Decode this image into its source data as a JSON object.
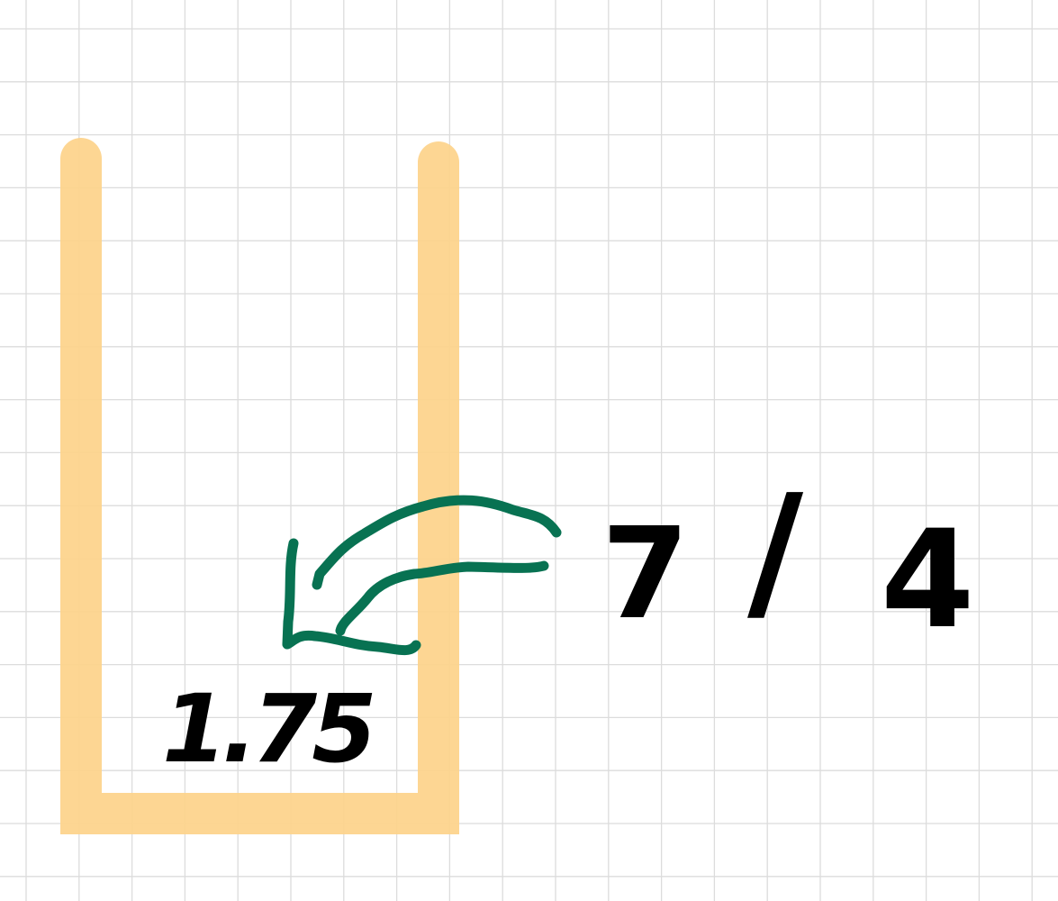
{
  "canvas": {
    "background_color": "#ffffff",
    "grid_color": "#dcdcdc"
  },
  "strokes": {
    "container_color": "#fdd38a",
    "arrow_color": "#087252",
    "ink_color": "#000000"
  },
  "handwriting": {
    "decimal_value": "1.75",
    "fraction_numerator": "7",
    "fraction_slash": "/",
    "fraction_denominator": "4"
  }
}
